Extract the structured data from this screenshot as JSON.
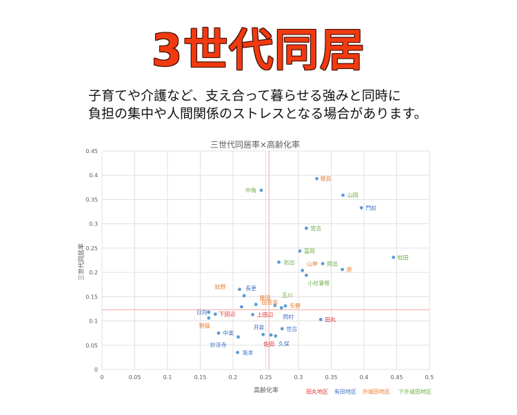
{
  "headline": "3世代同居",
  "subtext": {
    "line1": "子育てや介護など、支え合って暮らせる強みと同時に",
    "line2": "負担の集中や人間関係のストレスとなる場合があります。"
  },
  "colors": {
    "point": "#5b9bd5",
    "refline": "#f4a6a6",
    "grid": "#e0e0e0",
    "tadamaru": "#e03030",
    "arita": "#4472c4",
    "sotoki": "#ed7d31",
    "shimosotoki": "#70ad47"
  },
  "chart_data": {
    "type": "scatter",
    "title": "三世代同居率×高齢化率",
    "xlabel": "高齢化率",
    "ylabel": "三世代同居率",
    "xlim": [
      0,
      0.5
    ],
    "ylim": [
      0,
      0.45
    ],
    "xticks": [
      "0",
      "0.05",
      "0.1",
      "0.15",
      "0.2",
      "0.25",
      "0.3",
      "0.35",
      "0.4",
      "0.45",
      "0.5"
    ],
    "yticks": [
      "0",
      "0.05",
      "0.1",
      "0.15",
      "0.2",
      "0.25",
      "0.3",
      "0.35",
      "0.4",
      "0.45"
    ],
    "grid": true,
    "reference_lines": {
      "x": 0.255,
      "y": 0.123
    },
    "legend": [
      {
        "label": "田丸地区",
        "group": "tadamaru"
      },
      {
        "label": "有田地区",
        "group": "arita"
      },
      {
        "label": "外城田地区",
        "group": "sotoki"
      },
      {
        "label": "下外城田地区",
        "group": "shimosotoki"
      }
    ],
    "points": [
      {
        "label": "積良",
        "x": 0.328,
        "y": 0.393,
        "group": "sotoki"
      },
      {
        "label": "中角",
        "x": 0.243,
        "y": 0.369,
        "group": "shimosotoki"
      },
      {
        "label": "山岡",
        "x": 0.368,
        "y": 0.359,
        "group": "shimosotoki"
      },
      {
        "label": "門前",
        "x": 0.396,
        "y": 0.333,
        "group": "arita"
      },
      {
        "label": "宮古",
        "x": 0.312,
        "y": 0.291,
        "group": "shimosotoki"
      },
      {
        "label": "冨岡",
        "x": 0.302,
        "y": 0.244,
        "group": "shimosotoki"
      },
      {
        "label": "蚊田",
        "x": 0.445,
        "y": 0.231,
        "group": "shimosotoki"
      },
      {
        "label": "岩出",
        "x": 0.27,
        "y": 0.221,
        "group": "shimosotoki"
      },
      {
        "label": "岡出",
        "x": 0.337,
        "y": 0.218,
        "group": "shimosotoki"
      },
      {
        "label": "山神",
        "x": 0.306,
        "y": 0.204,
        "group": "sotoki"
      },
      {
        "label": "原",
        "x": 0.367,
        "y": 0.206,
        "group": "sotoki"
      },
      {
        "label": "小社曽根",
        "x": 0.312,
        "y": 0.194,
        "group": "shimosotoki"
      },
      {
        "label": "蚊野",
        "x": 0.21,
        "y": 0.165,
        "group": "sotoki"
      },
      {
        "label": "長更",
        "x": 0.217,
        "y": 0.152,
        "group": "arita"
      },
      {
        "label": "田宮寺",
        "x": 0.235,
        "y": 0.134,
        "group": "sotoki"
      },
      {
        "label": "勝田",
        "x": 0.213,
        "y": 0.129,
        "group": "sotoki"
      },
      {
        "label": "玉川",
        "x": 0.264,
        "y": 0.132,
        "group": "shimosotoki"
      },
      {
        "label": "矢野",
        "x": 0.28,
        "y": 0.131,
        "group": "sotoki"
      },
      {
        "label": "日向",
        "x": 0.163,
        "y": 0.118,
        "group": "arita"
      },
      {
        "label": "下田辺",
        "x": 0.173,
        "y": 0.114,
        "group": "tadamaru"
      },
      {
        "label": "上田辺",
        "x": 0.23,
        "y": 0.113,
        "group": "tadamaru"
      },
      {
        "label": "岡村",
        "x": 0.274,
        "y": 0.127,
        "group": "arita"
      },
      {
        "label": "田丸",
        "x": 0.334,
        "y": 0.103,
        "group": "tadamaru"
      },
      {
        "label": "野篠",
        "x": 0.163,
        "y": 0.106,
        "group": "sotoki"
      },
      {
        "label": "中楽",
        "x": 0.178,
        "y": 0.075,
        "group": "arita"
      },
      {
        "label": "井倉",
        "x": 0.246,
        "y": 0.072,
        "group": "arita"
      },
      {
        "label": "世古",
        "x": 0.275,
        "y": 0.084,
        "group": "arita"
      },
      {
        "label": "久保",
        "x": 0.265,
        "y": 0.069,
        "group": "arita"
      },
      {
        "label": "佐田",
        "x": 0.258,
        "y": 0.071,
        "group": "tadamaru"
      },
      {
        "label": "妙法寺",
        "x": 0.208,
        "y": 0.067,
        "group": "arita"
      },
      {
        "label": "坂本",
        "x": 0.207,
        "y": 0.035,
        "group": "arita"
      }
    ]
  }
}
